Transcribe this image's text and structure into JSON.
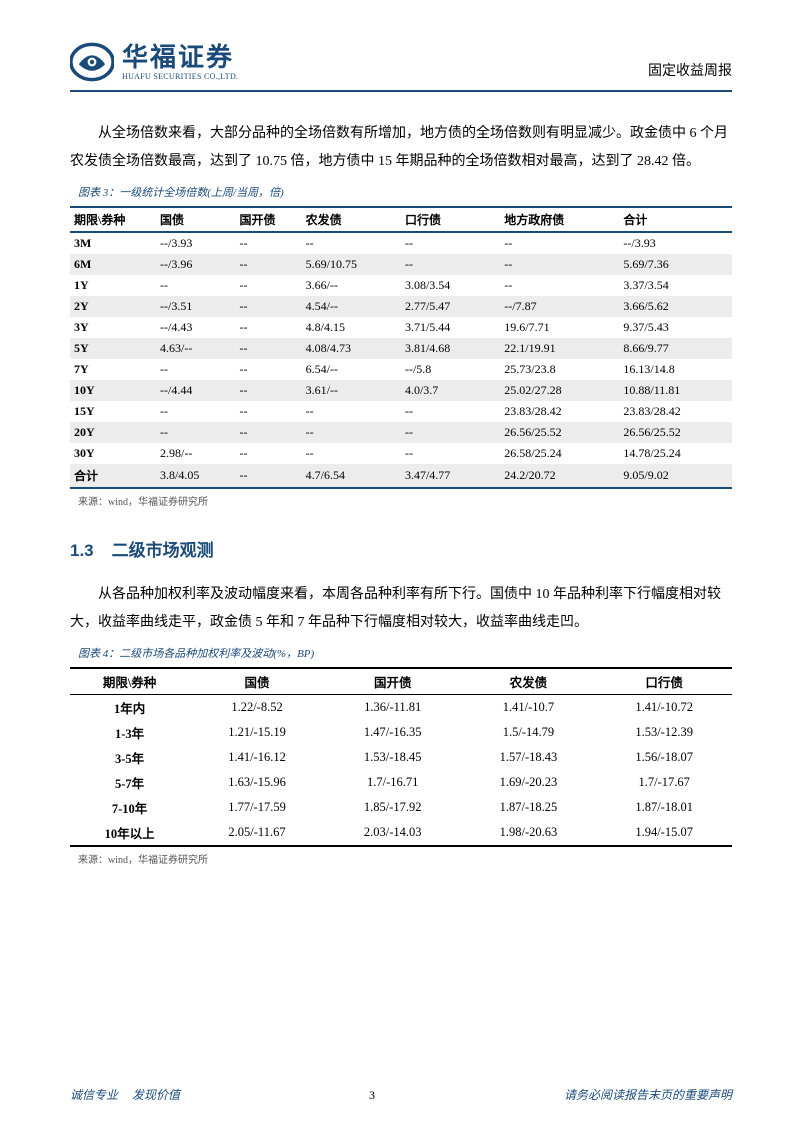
{
  "header": {
    "logo_cn": "华福证券",
    "logo_en": "HUAFU SECURITIES CO.,LTD.",
    "doc_type": "固定收益周报"
  },
  "para1": "从全场倍数来看，大部分品种的全场倍数有所增加，地方债的全场倍数则有明显减少。政金债中 6 个月农发债全场倍数最高，达到了 10.75 倍，地方债中 15 年期品种的全场倍数相对最高，达到了 28.42 倍。",
  "chart3": {
    "caption": "图表 3：一级统计全场倍数(上周/当周，倍)",
    "columns": [
      "期限\\券种",
      "国债",
      "国开债",
      "农发债",
      "口行债",
      "地方政府债",
      "合计"
    ],
    "rows": [
      [
        "3M",
        "--/3.93",
        "--",
        "--",
        "--",
        "--",
        "--/3.93"
      ],
      [
        "6M",
        "--/3.96",
        "--",
        "5.69/10.75",
        "--",
        "--",
        "5.69/7.36"
      ],
      [
        "1Y",
        "--",
        "--",
        "3.66/--",
        "3.08/3.54",
        "--",
        "3.37/3.54"
      ],
      [
        "2Y",
        "--/3.51",
        "--",
        "4.54/--",
        "2.77/5.47",
        "--/7.87",
        "3.66/5.62"
      ],
      [
        "3Y",
        "--/4.43",
        "--",
        "4.8/4.15",
        "3.71/5.44",
        "19.6/7.71",
        "9.37/5.43"
      ],
      [
        "5Y",
        "4.63/--",
        "--",
        "4.08/4.73",
        "3.81/4.68",
        "22.1/19.91",
        "8.66/9.77"
      ],
      [
        "7Y",
        "--",
        "--",
        "6.54/--",
        "--/5.8",
        "25.73/23.8",
        "16.13/14.8"
      ],
      [
        "10Y",
        "--/4.44",
        "--",
        "3.61/--",
        "4.0/3.7",
        "25.02/27.28",
        "10.88/11.81"
      ],
      [
        "15Y",
        "--",
        "--",
        "--",
        "--",
        "23.83/28.42",
        "23.83/28.42"
      ],
      [
        "20Y",
        "--",
        "--",
        "--",
        "--",
        "26.56/25.52",
        "26.56/25.52"
      ],
      [
        "30Y",
        "2.98/--",
        "--",
        "--",
        "--",
        "26.58/25.24",
        "14.78/25.24"
      ],
      [
        "合计",
        "3.8/4.05",
        "--",
        "4.7/6.54",
        "3.47/4.77",
        "24.2/20.72",
        "9.05/9.02"
      ]
    ],
    "source": "来源：wind，华福证券研究所"
  },
  "section": {
    "num": "1.3",
    "title": "二级市场观测"
  },
  "para2": "从各品种加权利率及波动幅度来看，本周各品种利率有所下行。国债中 10 年品种利率下行幅度相对较大，收益率曲线走平，政金债 5 年和 7 年品种下行幅度相对较大，收益率曲线走凹。",
  "chart4": {
    "caption": "图表 4：二级市场各品种加权利率及波动(%，BP)",
    "columns": [
      "期限\\券种",
      "国债",
      "国开债",
      "农发债",
      "口行债"
    ],
    "rows": [
      [
        "1年内",
        "1.22/-8.52",
        "1.36/-11.81",
        "1.41/-10.7",
        "1.41/-10.72"
      ],
      [
        "1-3年",
        "1.21/-15.19",
        "1.47/-16.35",
        "1.5/-14.79",
        "1.53/-12.39"
      ],
      [
        "3-5年",
        "1.41/-16.12",
        "1.53/-18.45",
        "1.57/-18.43",
        "1.56/-18.07"
      ],
      [
        "5-7年",
        "1.63/-15.96",
        "1.7/-16.71",
        "1.69/-20.23",
        "1.7/-17.67"
      ],
      [
        "7-10年",
        "1.77/-17.59",
        "1.85/-17.92",
        "1.87/-18.25",
        "1.87/-18.01"
      ],
      [
        "10年以上",
        "2.05/-11.67",
        "2.03/-14.03",
        "1.98/-20.63",
        "1.94/-15.07"
      ]
    ],
    "source": "来源：wind，华福证券研究所"
  },
  "footer": {
    "motto1": "诚信专业",
    "motto2": "发现价值",
    "page": "3",
    "disclaimer": "请务必阅读报告末页的重要声明"
  },
  "colors": {
    "brand": "#1a4a7a",
    "alt_row": "#ececec"
  }
}
